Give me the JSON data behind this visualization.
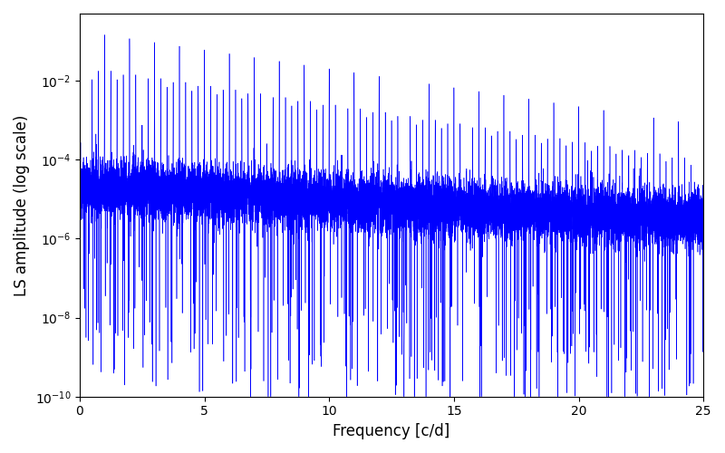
{
  "xlabel": "Frequency [c/d]",
  "ylabel": "LS amplitude (log scale)",
  "xlim": [
    0,
    25
  ],
  "ylim": [
    1e-10,
    0.5
  ],
  "line_color": "#0000ff",
  "background_color": "#ffffff",
  "figsize": [
    8.0,
    5.0
  ],
  "dpi": 100,
  "freq_max": 25.0,
  "n_points": 15000,
  "seed": 12345
}
